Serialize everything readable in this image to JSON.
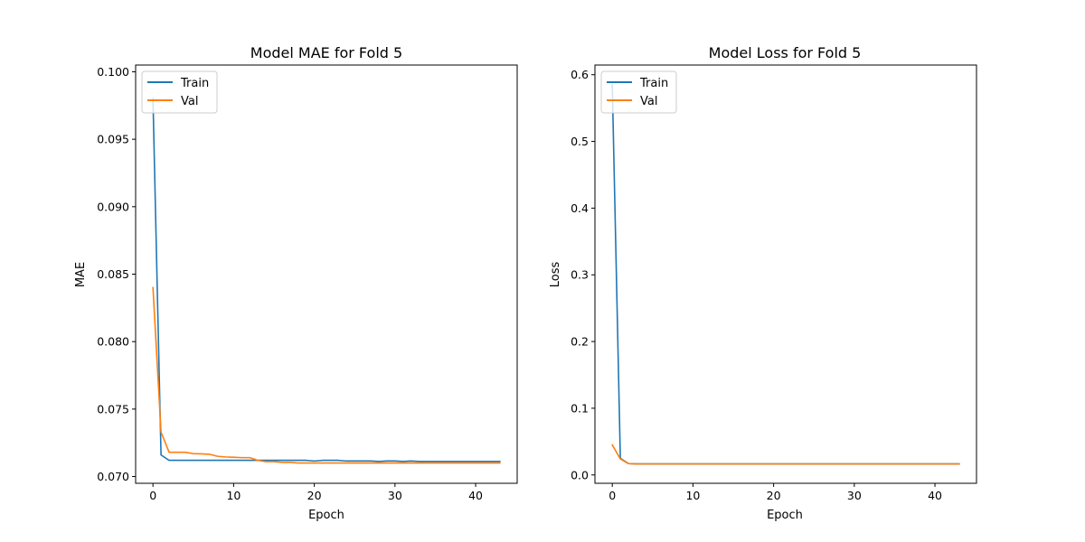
{
  "colors": {
    "train": "#1f77b4",
    "val": "#ff7f0e"
  },
  "chart_data": [
    {
      "type": "line",
      "title": "Model MAE for Fold 5",
      "xlabel": "Epoch",
      "ylabel": "MAE",
      "xlim": [
        -2.15,
        45.15
      ],
      "ylim": [
        0.0695,
        0.1005
      ],
      "xticks": [
        0,
        10,
        20,
        30,
        40
      ],
      "yticks": [
        0.07,
        0.075,
        0.08,
        0.085,
        0.09,
        0.095,
        0.1
      ],
      "ytick_labels": [
        "0.070",
        "0.075",
        "0.080",
        "0.085",
        "0.090",
        "0.095",
        "0.100"
      ],
      "legend": {
        "position": "upper-left",
        "entries": [
          "Train",
          "Val"
        ]
      },
      "series": [
        {
          "name": "Train",
          "color": "#1f77b4",
          "values": [
            0.098,
            0.0716,
            0.0712,
            0.0712,
            0.0712,
            0.0712,
            0.0712,
            0.0712,
            0.0712,
            0.0712,
            0.0712,
            0.0712,
            0.0712,
            0.0712,
            0.0712,
            0.0712,
            0.0712,
            0.0712,
            0.0712,
            0.0712,
            0.07115,
            0.0712,
            0.0712,
            0.0712,
            0.07115,
            0.07115,
            0.07115,
            0.07115,
            0.07112,
            0.07115,
            0.07115,
            0.07112,
            0.07115,
            0.07112,
            0.07112,
            0.07112,
            0.07112,
            0.07112,
            0.07112,
            0.07112,
            0.07112,
            0.07112,
            0.07112,
            0.07112
          ]
        },
        {
          "name": "Val",
          "color": "#ff7f0e",
          "values": [
            0.084,
            0.0733,
            0.0718,
            0.0718,
            0.0718,
            0.0717,
            0.07168,
            0.07165,
            0.0715,
            0.07145,
            0.07143,
            0.0714,
            0.0714,
            0.0712,
            0.0711,
            0.0711,
            0.07105,
            0.07105,
            0.071,
            0.071,
            0.071,
            0.071,
            0.071,
            0.071,
            0.071,
            0.071,
            0.071,
            0.071,
            0.071,
            0.071,
            0.071,
            0.071,
            0.071,
            0.071,
            0.071,
            0.071,
            0.071,
            0.071,
            0.071,
            0.071,
            0.071,
            0.071,
            0.071,
            0.071
          ]
        }
      ]
    },
    {
      "type": "line",
      "title": "Model Loss for Fold 5",
      "xlabel": "Epoch",
      "ylabel": "Loss",
      "xlim": [
        -2.15,
        45.15
      ],
      "ylim": [
        -0.0125,
        0.6145
      ],
      "xticks": [
        0,
        10,
        20,
        30,
        40
      ],
      "yticks": [
        0.0,
        0.1,
        0.2,
        0.3,
        0.4,
        0.5,
        0.6
      ],
      "ytick_labels": [
        "0.0",
        "0.1",
        "0.2",
        "0.3",
        "0.4",
        "0.5",
        "0.6"
      ],
      "legend": {
        "position": "upper-left",
        "entries": [
          "Train",
          "Val"
        ]
      },
      "series": [
        {
          "name": "Train",
          "color": "#1f77b4",
          "values": [
            0.585,
            0.025,
            0.017,
            0.0165,
            0.0165,
            0.0165,
            0.0165,
            0.0165,
            0.0165,
            0.0165,
            0.0165,
            0.0165,
            0.0165,
            0.0165,
            0.0165,
            0.0165,
            0.0165,
            0.0165,
            0.0165,
            0.0165,
            0.0165,
            0.0165,
            0.0165,
            0.0165,
            0.0165,
            0.0165,
            0.0165,
            0.0165,
            0.0165,
            0.0165,
            0.0165,
            0.0165,
            0.0165,
            0.0165,
            0.0165,
            0.0165,
            0.0165,
            0.0165,
            0.0165,
            0.0165,
            0.0165,
            0.0165,
            0.0165,
            0.0165
          ]
        },
        {
          "name": "Val",
          "color": "#ff7f0e",
          "values": [
            0.045,
            0.024,
            0.017,
            0.0165,
            0.0165,
            0.0165,
            0.0165,
            0.0165,
            0.0165,
            0.0165,
            0.0165,
            0.0165,
            0.0165,
            0.0165,
            0.0165,
            0.0165,
            0.0165,
            0.0165,
            0.0165,
            0.0165,
            0.0165,
            0.0165,
            0.0165,
            0.0165,
            0.0165,
            0.0165,
            0.0165,
            0.0165,
            0.0165,
            0.0165,
            0.0165,
            0.0165,
            0.0165,
            0.0165,
            0.0165,
            0.0165,
            0.0165,
            0.0165,
            0.0165,
            0.0165,
            0.0165,
            0.0165,
            0.0165,
            0.0165
          ]
        }
      ]
    }
  ]
}
